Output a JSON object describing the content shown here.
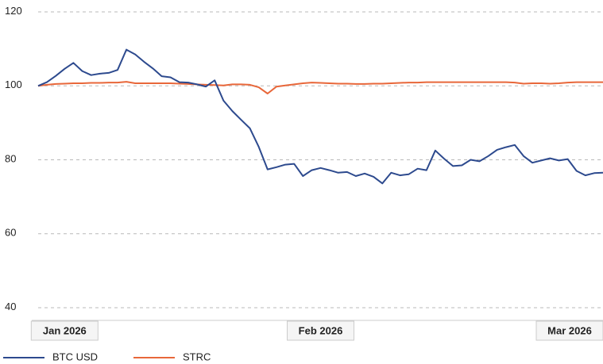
{
  "chart_data": {
    "type": "line",
    "categories": [
      null,
      null,
      null,
      "Jan 2026",
      null,
      null,
      null,
      null,
      null,
      null,
      null,
      null,
      null,
      null,
      null,
      null,
      null,
      null,
      null,
      null,
      null,
      null,
      null,
      null,
      null,
      null,
      null,
      null,
      null,
      null,
      null,
      null,
      "Feb 2026",
      null,
      null,
      null,
      null,
      null,
      null,
      null,
      null,
      null,
      null,
      null,
      null,
      null,
      null,
      null,
      null,
      null,
      null,
      null,
      null,
      null,
      null,
      null,
      null,
      null,
      null,
      null,
      null,
      "Mar 2026",
      null,
      null,
      null
    ],
    "series": [
      {
        "name": "BTC USD",
        "color": "#2d4a8e",
        "values": [
          100,
          101,
          102.7,
          104.6,
          106.2,
          104,
          102.9,
          103.3,
          103.5,
          104.3,
          109.8,
          108.5,
          106.5,
          104.7,
          102.6,
          102.3,
          101,
          100.9,
          100.4,
          99.8,
          101.5,
          96,
          93.2,
          90.8,
          88.5,
          83.5,
          77.4,
          78,
          78.7,
          78.9,
          75.6,
          77.2,
          77.8,
          77.2,
          76.5,
          76.7,
          75.6,
          76.3,
          75.4,
          73.6,
          76.5,
          75.8,
          76.1,
          77.6,
          77.2,
          82.5,
          80.3,
          78.3,
          78.5,
          80,
          79.6,
          81,
          82.7,
          83.4,
          84,
          81,
          79.2,
          79.8,
          80.4,
          79.8,
          80.2,
          77,
          75.8,
          76.4,
          76.5
        ]
      },
      {
        "name": "STRC",
        "color": "#e8673a",
        "values": [
          100,
          100.3,
          100.5,
          100.6,
          100.7,
          100.7,
          100.8,
          100.8,
          100.9,
          100.9,
          101.1,
          100.7,
          100.7,
          100.7,
          100.7,
          100.7,
          100.6,
          100.5,
          100.4,
          100.3,
          100.2,
          100.1,
          100.4,
          100.4,
          100.3,
          99.6,
          97.9,
          99.8,
          100.1,
          100.4,
          100.7,
          100.9,
          100.8,
          100.7,
          100.6,
          100.6,
          100.5,
          100.5,
          100.6,
          100.6,
          100.7,
          100.8,
          100.9,
          100.9,
          101,
          101,
          101,
          101,
          101,
          101,
          101,
          101,
          101,
          101,
          100.9,
          100.6,
          100.7,
          100.7,
          100.6,
          100.7,
          100.9,
          101,
          101,
          101,
          101
        ]
      }
    ],
    "ylim": [
      40,
      120
    ],
    "yticks": [
      40,
      60,
      80,
      100,
      120
    ],
    "grid": true,
    "legend": "bottom"
  }
}
